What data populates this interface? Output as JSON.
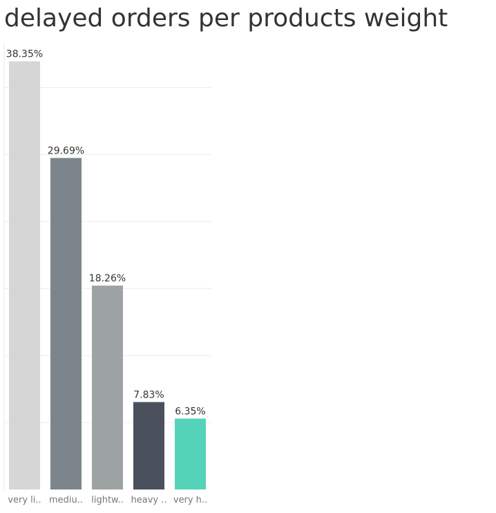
{
  "chart_data": {
    "type": "bar",
    "title": "delayed orders per products weight",
    "xlabel": "",
    "ylabel": "",
    "categories": [
      "very li..",
      "mediu..",
      "lightw..",
      "heavy ..",
      "very h.."
    ],
    "values": [
      38.35,
      29.69,
      18.26,
      7.83,
      6.35
    ],
    "value_labels": [
      "38.35%",
      "29.69%",
      "18.26%",
      "7.83%",
      "6.35%"
    ],
    "ylim": [
      0,
      40
    ],
    "grid": true,
    "legend": "none",
    "colors": [
      "#d6d6d6",
      "#7b858b",
      "#9da2a3",
      "#4a505c",
      "#54d3b8"
    ]
  }
}
